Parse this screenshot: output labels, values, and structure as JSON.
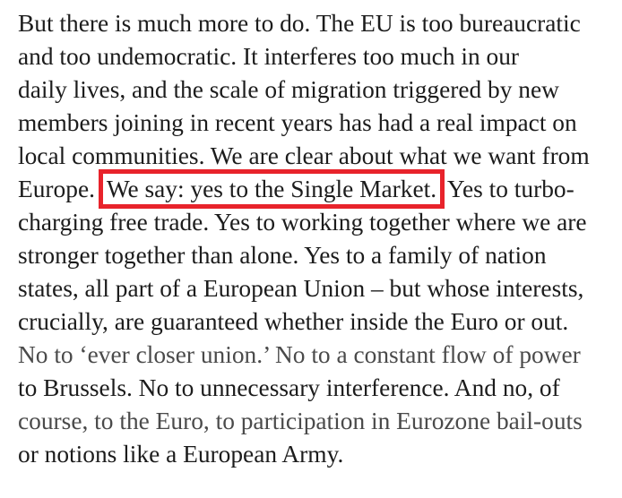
{
  "article": {
    "lines": [
      "But there is much more to do. The EU is too bureaucratic",
      "and too undemocratic. It interferes too much in our",
      "daily lives, and the scale of migration triggered by new",
      "members joining in recent years has had a real impact on",
      "local communities. We are clear about what we want from",
      null,
      "charging free trade. Yes to working together where we are",
      "stronger together than alone. Yes to a family of nation",
      "states, all part of a European Union – but whose interests,",
      "crucially, are guaranteed whether inside the Euro or out.",
      "No to ‘ever closer union.’ No to a constant flow of power",
      "to Brussels. No to unnecessary interference. And no, of",
      "course, to the Euro, to participation in Eurozone bail-outs",
      "or notions like a European Army."
    ],
    "line6": {
      "before": "Europe.",
      "highlighted": "We say: yes to the Single Market.",
      "after": "Yes to turbo-"
    }
  },
  "highlight_color": "#e8232b"
}
